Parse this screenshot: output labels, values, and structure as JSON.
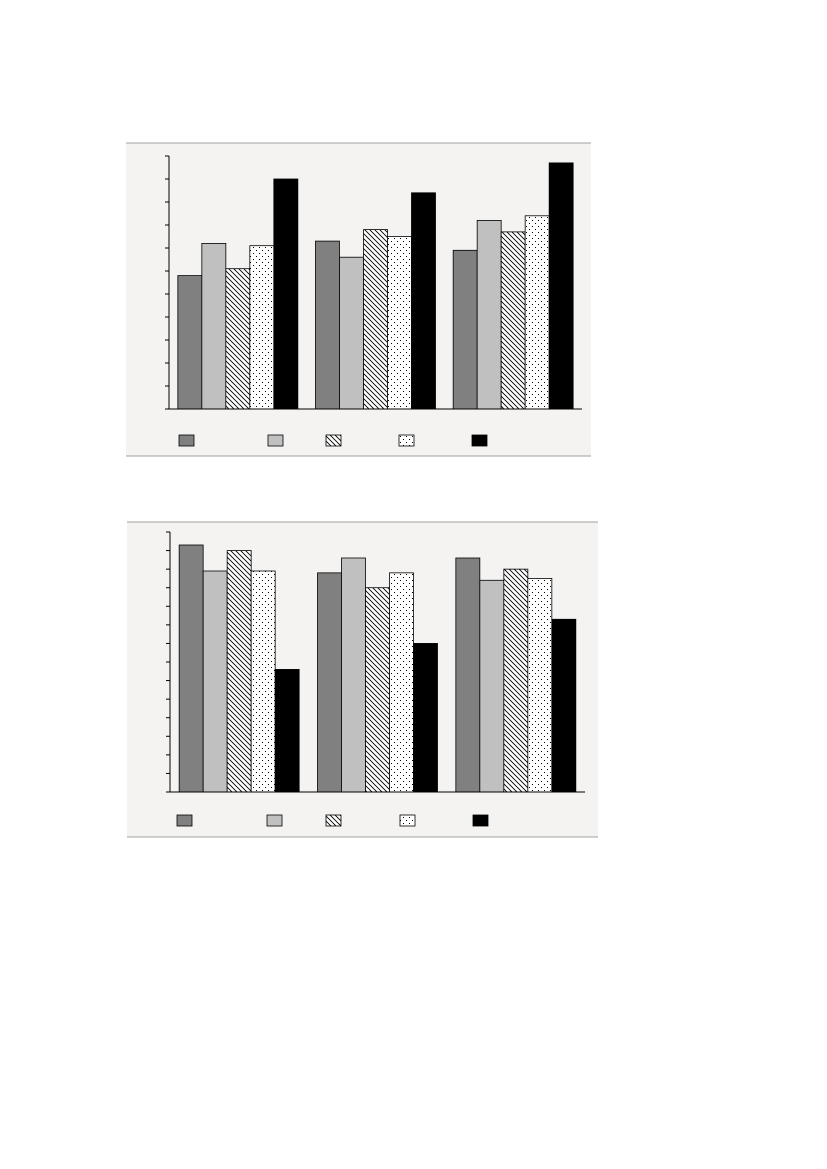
{
  "chart_data": [
    {
      "type": "bar",
      "categories": [
        null,
        null,
        null
      ],
      "series": [
        {
          "color": "#808080",
          "values": [
            5.8,
            7.3,
            6.9
          ]
        },
        {
          "color": "#c0c0c0",
          "values": [
            7.2,
            6.6,
            8.2
          ]
        },
        {
          "color": "#ffffff",
          "pattern": "hatch",
          "values": [
            6.1,
            7.8,
            7.7
          ]
        },
        {
          "color": "#ffffff",
          "pattern": "dots",
          "values": [
            7.1,
            7.5,
            8.4
          ]
        },
        {
          "color": "#000000",
          "values": [
            10.0,
            9.4,
            10.7
          ]
        }
      ],
      "ylim": [
        0,
        11
      ],
      "yticks": [
        0,
        1,
        2,
        3,
        4,
        5,
        6,
        7,
        8,
        9,
        10,
        11
      ]
    },
    {
      "type": "bar",
      "categories": [
        null,
        null,
        null
      ],
      "series": [
        {
          "color": "#808080",
          "values": [
            13.3,
            11.8,
            12.6
          ]
        },
        {
          "color": "#c0c0c0",
          "values": [
            11.9,
            12.6,
            11.4
          ]
        },
        {
          "color": "#ffffff",
          "pattern": "hatch",
          "values": [
            13.0,
            11.0,
            12.0
          ]
        },
        {
          "color": "#ffffff",
          "pattern": "dots",
          "values": [
            11.9,
            11.8,
            11.5
          ]
        },
        {
          "color": "#000000",
          "values": [
            6.6,
            8.0,
            9.3
          ]
        }
      ],
      "ylim": [
        0,
        14
      ],
      "yticks": [
        0,
        1,
        2,
        3,
        4,
        5,
        6,
        7,
        8,
        9,
        10,
        11,
        12,
        13,
        14
      ]
    }
  ]
}
